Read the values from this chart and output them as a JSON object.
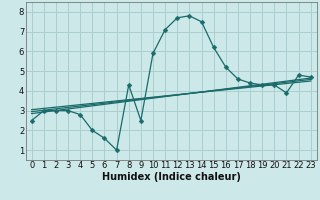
{
  "xlabel": "Humidex (Indice chaleur)",
  "bg_color": "#cce8e8",
  "line_color": "#1a6b6b",
  "grid_color": "#aacfcf",
  "xlim": [
    -0.5,
    23.5
  ],
  "ylim": [
    0.5,
    8.5
  ],
  "xticks": [
    0,
    1,
    2,
    3,
    4,
    5,
    6,
    7,
    8,
    9,
    10,
    11,
    12,
    13,
    14,
    15,
    16,
    17,
    18,
    19,
    20,
    21,
    22,
    23
  ],
  "yticks": [
    1,
    2,
    3,
    4,
    5,
    6,
    7,
    8
  ],
  "jagged_x": [
    0,
    1,
    2,
    3,
    4,
    5,
    6,
    7,
    8,
    9,
    10,
    11,
    12,
    13,
    14,
    15,
    16,
    17,
    18,
    19,
    20,
    21,
    22,
    23
  ],
  "jagged_y": [
    2.5,
    3.0,
    3.0,
    3.0,
    2.8,
    2.0,
    1.6,
    1.0,
    4.3,
    2.5,
    5.9,
    7.1,
    7.7,
    7.8,
    7.5,
    6.2,
    5.2,
    4.6,
    4.4,
    4.3,
    4.3,
    3.9,
    4.8,
    4.7
  ],
  "line1_x": [
    0,
    23
  ],
  "line1_y": [
    2.85,
    4.65
  ],
  "line2_x": [
    0,
    23
  ],
  "line2_y": [
    3.05,
    4.5
  ],
  "line3_x": [
    0,
    23
  ],
  "line3_y": [
    2.95,
    4.58
  ],
  "tick_fontsize": 6.0,
  "xlabel_fontsize": 7.0,
  "marker_size": 2.5,
  "linewidth": 0.9
}
